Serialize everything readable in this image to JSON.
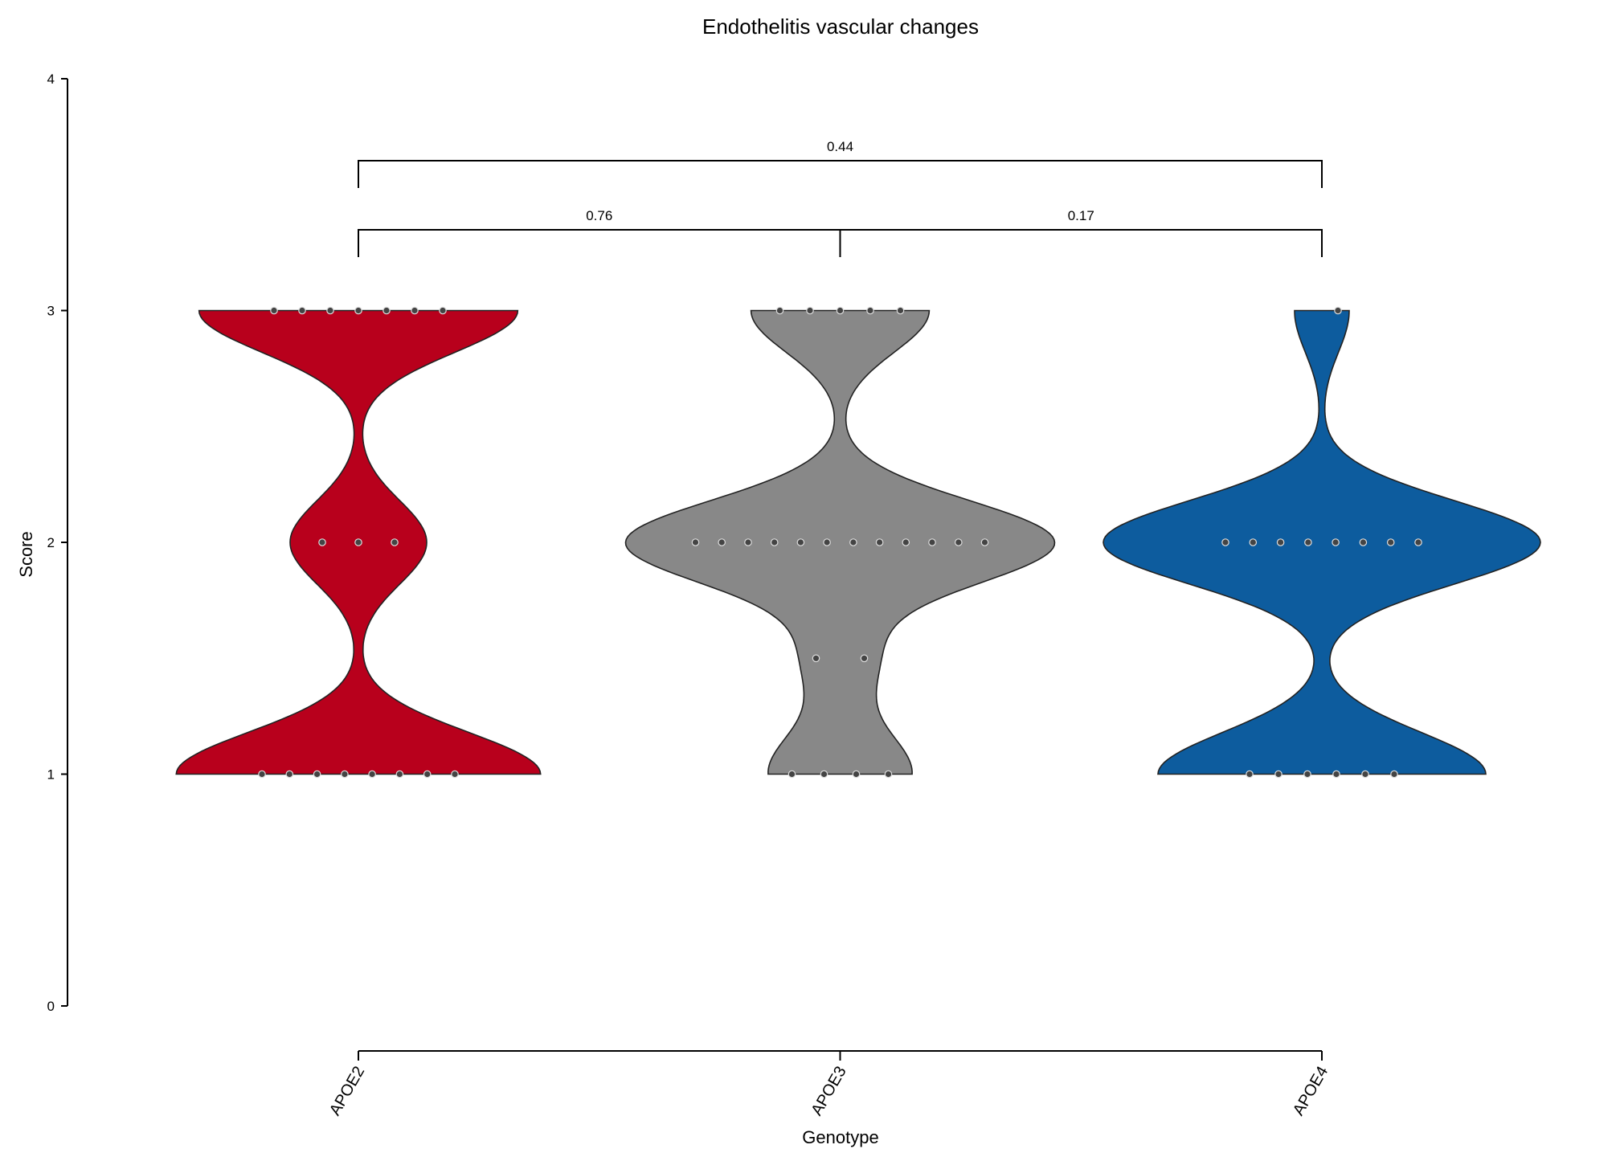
{
  "chart_data": {
    "type": "violin",
    "title": "Endothelitis vascular changes",
    "xlabel": "Genotype",
    "ylabel": "Score",
    "ylim": [
      0,
      4
    ],
    "yticks": [
      0,
      1,
      2,
      3,
      4
    ],
    "categories": [
      "APOE2",
      "APOE3",
      "APOE4"
    ],
    "colors": {
      "APOE2": "#b8001c",
      "APOE3": "#888888",
      "APOE4": "#0d5c9e"
    },
    "series": [
      {
        "category": "APOE2",
        "points": [
          1,
          1,
          1,
          1,
          1,
          1,
          1,
          1,
          2,
          2,
          2,
          3,
          3,
          3,
          3,
          3,
          3,
          3
        ]
      },
      {
        "category": "APOE3",
        "points": [
          1,
          1,
          1,
          1,
          1.5,
          1.5,
          2,
          2,
          2,
          2,
          2,
          2,
          2,
          2,
          2,
          2,
          2,
          2,
          3,
          3,
          3,
          3,
          3
        ]
      },
      {
        "category": "APOE4",
        "points": [
          1,
          1,
          1,
          1,
          1,
          1,
          2,
          2,
          2,
          2,
          2,
          2,
          2,
          2,
          3
        ]
      }
    ],
    "comparisons": [
      {
        "groups": [
          "APOE2",
          "APOE3"
        ],
        "p_label": "0.76"
      },
      {
        "groups": [
          "APOE3",
          "APOE4"
        ],
        "p_label": "0.17"
      },
      {
        "groups": [
          "APOE2",
          "APOE4"
        ],
        "p_label": "0.44"
      }
    ]
  }
}
